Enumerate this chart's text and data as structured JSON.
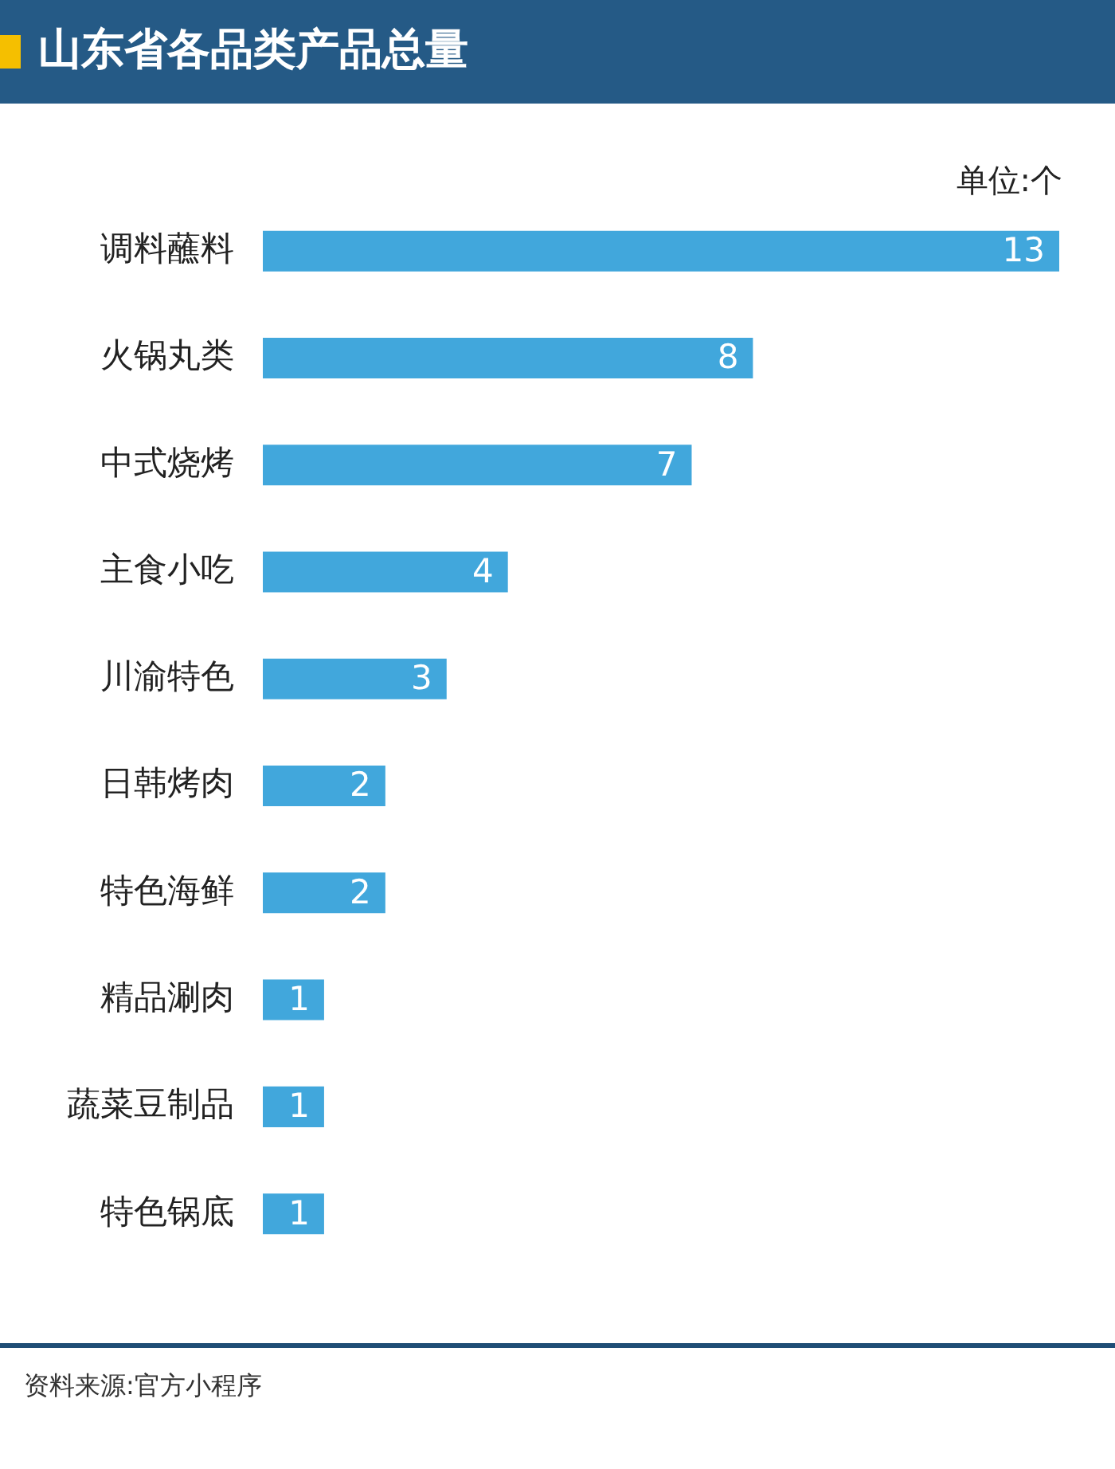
{
  "chart_data": {
    "type": "bar",
    "orientation": "horizontal",
    "title": "山东省各品类产品总量",
    "xlabel": "单位:个",
    "categories": [
      "调料蘸料",
      "火锅丸类",
      "中式烧烤",
      "主食小吃",
      "川渝特色",
      "日韩烤肉",
      "特色海鲜",
      "精品涮肉",
      "蔬菜豆制品",
      "特色锅底"
    ],
    "values": [
      13,
      8,
      7,
      4,
      3,
      2,
      2,
      1,
      1,
      1
    ],
    "color": "#41a7dc",
    "xlim": [
      0,
      13
    ],
    "data_labels": true,
    "tick_labels": "y",
    "legend": false,
    "grid": false,
    "annotations": [
      "资料来源:官方小程序"
    ]
  }
}
